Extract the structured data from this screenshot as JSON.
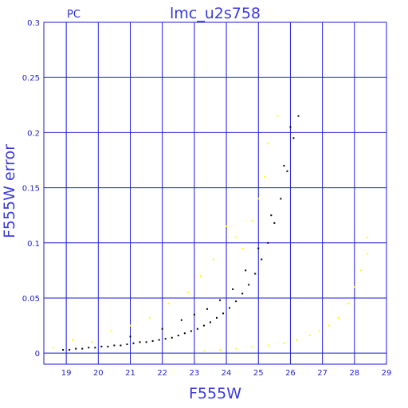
{
  "chart_data": {
    "type": "scatter",
    "title": "lmc_u2s758",
    "corner_label": "PC",
    "xlabel": "F555W",
    "ylabel": "F555W error",
    "xlim": [
      18.3,
      29
    ],
    "ylim": [
      -0.01,
      0.3
    ],
    "x_ticks": [
      "19",
      "20",
      "21",
      "22",
      "23",
      "24",
      "25",
      "26",
      "27",
      "28",
      "29"
    ],
    "y_ticks": [
      "0",
      "0.05",
      "0.1",
      "0.15",
      "0.2",
      "0.25",
      "0.3"
    ],
    "grid": true,
    "colors": {
      "axes": "#1a1ad6",
      "grid": "#1a1ad6",
      "text": "#3a3ae0",
      "main_sequence": "#000000",
      "secondary": "#ffff00"
    },
    "series": [
      {
        "color": "#000000",
        "points": [
          [
            18.9,
            0.003
          ],
          [
            19.1,
            0.003
          ],
          [
            19.3,
            0.004
          ],
          [
            19.5,
            0.004
          ],
          [
            19.7,
            0.005
          ],
          [
            19.9,
            0.005
          ],
          [
            20.1,
            0.006
          ],
          [
            20.3,
            0.006
          ],
          [
            20.5,
            0.007
          ],
          [
            20.7,
            0.007
          ],
          [
            20.9,
            0.008
          ],
          [
            21.1,
            0.009
          ],
          [
            21.3,
            0.01
          ],
          [
            21.5,
            0.01
          ],
          [
            21.7,
            0.011
          ],
          [
            21.9,
            0.012
          ],
          [
            22.1,
            0.013
          ],
          [
            22.3,
            0.014
          ],
          [
            22.5,
            0.016
          ],
          [
            22.7,
            0.018
          ],
          [
            22.9,
            0.02
          ],
          [
            23.1,
            0.022
          ],
          [
            23.3,
            0.025
          ],
          [
            23.5,
            0.028
          ],
          [
            23.7,
            0.032
          ],
          [
            23.9,
            0.036
          ],
          [
            24.1,
            0.041
          ],
          [
            24.3,
            0.047
          ],
          [
            24.5,
            0.054
          ],
          [
            24.7,
            0.062
          ],
          [
            24.9,
            0.072
          ],
          [
            25.1,
            0.085
          ],
          [
            25.3,
            0.1
          ],
          [
            25.5,
            0.118
          ],
          [
            25.7,
            0.14
          ],
          [
            25.9,
            0.165
          ],
          [
            26.1,
            0.195
          ],
          [
            26.25,
            0.215
          ],
          [
            21.0,
            0.015
          ],
          [
            22.0,
            0.022
          ],
          [
            22.6,
            0.03
          ],
          [
            23.0,
            0.035
          ],
          [
            23.4,
            0.04
          ],
          [
            23.8,
            0.048
          ],
          [
            24.2,
            0.058
          ],
          [
            24.6,
            0.075
          ],
          [
            25.0,
            0.095
          ],
          [
            25.4,
            0.125
          ],
          [
            25.8,
            0.17
          ],
          [
            26.0,
            0.205
          ]
        ]
      },
      {
        "color": "#ffff00",
        "points": [
          [
            18.6,
            0.005
          ],
          [
            19.2,
            0.012
          ],
          [
            19.8,
            0.01
          ],
          [
            20.4,
            0.02
          ],
          [
            21.0,
            0.025
          ],
          [
            21.6,
            0.032
          ],
          [
            22.2,
            0.045
          ],
          [
            22.8,
            0.055
          ],
          [
            23.2,
            0.07
          ],
          [
            23.6,
            0.085
          ],
          [
            24.0,
            0.115
          ],
          [
            24.3,
            0.105
          ],
          [
            24.8,
            0.12
          ],
          [
            25.0,
            0.14
          ],
          [
            25.3,
            0.19
          ],
          [
            25.6,
            0.215
          ],
          [
            25.2,
            0.16
          ],
          [
            24.5,
            0.095
          ],
          [
            23.3,
            0.002
          ],
          [
            23.8,
            0.003
          ],
          [
            24.3,
            0.004
          ],
          [
            24.8,
            0.006
          ],
          [
            25.3,
            0.007
          ],
          [
            25.8,
            0.009
          ],
          [
            26.2,
            0.012
          ],
          [
            26.6,
            0.016
          ],
          [
            26.9,
            0.02
          ],
          [
            27.2,
            0.025
          ],
          [
            27.5,
            0.032
          ],
          [
            27.8,
            0.045
          ],
          [
            28.0,
            0.06
          ],
          [
            28.2,
            0.075
          ],
          [
            28.4,
            0.09
          ],
          [
            28.4,
            0.105
          ]
        ]
      }
    ]
  }
}
